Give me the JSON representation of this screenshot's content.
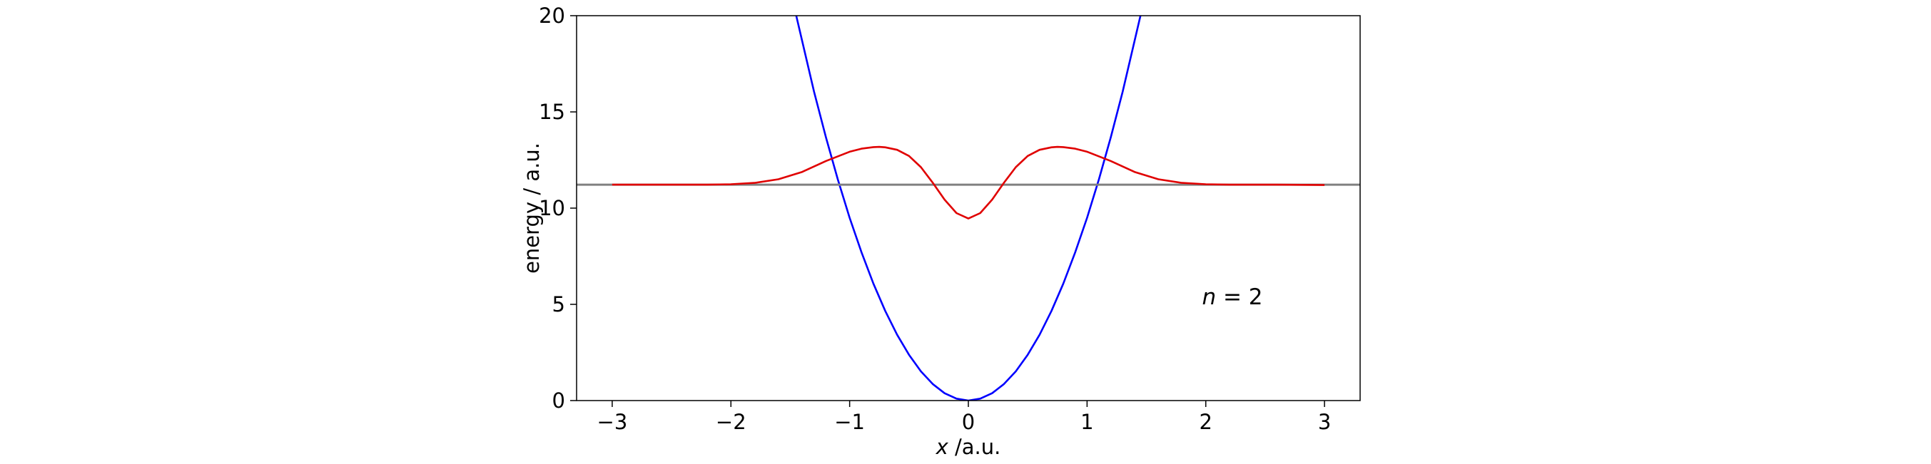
{
  "chart_data": {
    "type": "line",
    "xlabel_var": "x",
    "xlabel_unit": " /a.u.",
    "ylabel": "energy / a.u.",
    "xlim": [
      -3.3,
      3.3
    ],
    "ylim": [
      0,
      20
    ],
    "x_ticks": [
      -3,
      -2,
      -1,
      0,
      1,
      2,
      3
    ],
    "x_tick_labels": [
      "−3",
      "−2",
      "−1",
      "0",
      "1",
      "2",
      "3"
    ],
    "y_ticks": [
      0,
      5,
      10,
      15,
      20
    ],
    "y_tick_labels": [
      "0",
      "5",
      "10",
      "15",
      "20"
    ],
    "annotation_var": "n",
    "annotation_rest": " = 2",
    "grid": false,
    "series": [
      {
        "color": "#0000ff",
        "x": [
          -1.45,
          -1.3,
          -1.2,
          -1.1,
          -1.0,
          -0.9,
          -0.8,
          -0.7,
          -0.6,
          -0.5,
          -0.4,
          -0.3,
          -0.2,
          -0.1,
          0.0,
          0.1,
          0.2,
          0.3,
          0.4,
          0.5,
          0.6,
          0.7,
          0.8,
          0.9,
          1.0,
          1.1,
          1.2,
          1.3,
          1.45
        ],
        "y": [
          20.0,
          16.06,
          13.68,
          11.5,
          9.5,
          7.7,
          6.08,
          4.66,
          3.42,
          2.38,
          1.52,
          0.86,
          0.38,
          0.1,
          0.0,
          0.1,
          0.38,
          0.86,
          1.52,
          2.38,
          3.42,
          4.66,
          6.08,
          7.7,
          9.5,
          11.5,
          13.68,
          16.06,
          20.0
        ]
      },
      {
        "color": "#808080",
        "x": [
          -3.3,
          3.3
        ],
        "y": [
          11.22,
          11.22
        ]
      },
      {
        "color": "#e00000",
        "x": [
          -3.0,
          -2.6,
          -2.2,
          -2.0,
          -1.8,
          -1.6,
          -1.4,
          -1.2,
          -1.0,
          -0.9,
          -0.8,
          -0.75,
          -0.7,
          -0.6,
          -0.5,
          -0.4,
          -0.3,
          -0.2,
          -0.1,
          0.0,
          0.1,
          0.2,
          0.3,
          0.4,
          0.5,
          0.6,
          0.7,
          0.75,
          0.8,
          0.9,
          1.0,
          1.2,
          1.4,
          1.6,
          1.8,
          2.0,
          2.2,
          2.6,
          3.0
        ],
        "y": [
          11.22,
          11.22,
          11.22,
          11.24,
          11.31,
          11.5,
          11.88,
          12.45,
          12.93,
          13.09,
          13.17,
          13.18,
          13.16,
          13.03,
          12.71,
          12.13,
          11.32,
          10.44,
          9.74,
          9.46,
          9.74,
          10.44,
          11.32,
          12.13,
          12.71,
          13.03,
          13.16,
          13.18,
          13.17,
          13.09,
          12.93,
          12.45,
          11.88,
          11.5,
          11.31,
          11.24,
          11.22,
          11.22,
          11.2
        ]
      }
    ]
  }
}
